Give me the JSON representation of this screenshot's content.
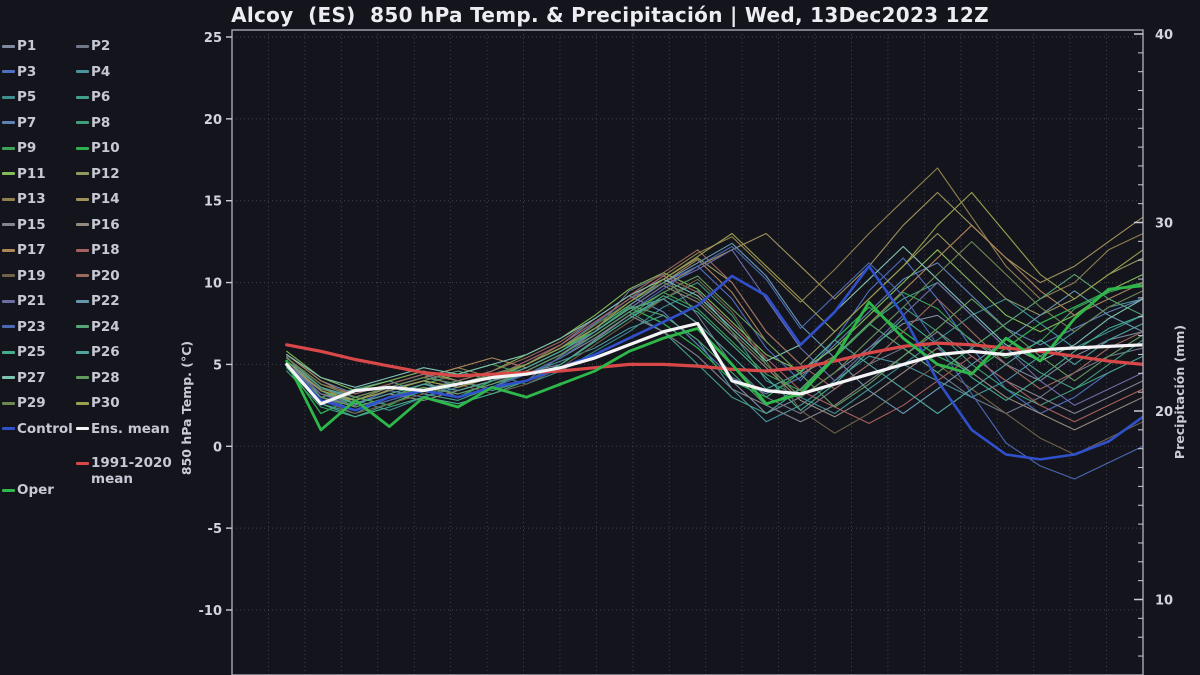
{
  "header": {
    "title": "Alcoy  (ES)  850 hPa Temp. & Precipitación | Wed, 13Dec2023 12Z"
  },
  "colors": {
    "background": "#14141d",
    "frame": "#a9a9b4",
    "grid": "#43434f",
    "tick": "#c9ccd6",
    "text": "#c6c9d3",
    "title": "#ececf2",
    "ens_mean": "#f4f4f6",
    "clim_mean": "#d84848",
    "oper": "#2eb84a",
    "control": "#3050cc"
  },
  "chart_data": {
    "type": "line",
    "title": "Alcoy  (ES)  850 hPa Temp. & Precipitación | Wed, 13Dec2023 12Z",
    "x": {
      "range": [
        0,
        25
      ],
      "data_start": 1.5,
      "gridline_step": 1,
      "tick_labels_visible": false
    },
    "y_left": {
      "label": "850 hPa Temp. (°C)",
      "ticks": [
        25,
        20,
        15,
        10,
        5,
        0,
        -5,
        -10
      ],
      "range": [
        -14,
        25.4
      ],
      "grid": true
    },
    "y_right": {
      "label": "Precipitación (mm)",
      "ticks": [
        10,
        20,
        30,
        40
      ],
      "minor_step": 1,
      "range": [
        6,
        40.3
      ],
      "grid": false
    },
    "legend_layout": {
      "member_rows": 15,
      "special_rows": [
        "Control",
        "Ens. mean",
        "1991-2020 mean",
        "Oper"
      ]
    },
    "series": [
      {
        "name": "P1",
        "color": "#7f8aa0",
        "width": 1.1,
        "values": [
          5.5,
          3.0,
          2.5,
          3.5,
          4.0,
          3.0,
          4.0,
          4.5,
          5.0,
          6.5,
          8.0,
          9.0,
          7.5,
          4.0,
          2.0,
          3.0,
          4.5,
          6.0,
          7.5,
          8.0,
          6.5,
          5.0,
          4.0,
          5.5,
          6.5,
          7.0
        ]
      },
      {
        "name": "P2",
        "color": "#6f7888",
        "width": 1.1,
        "values": [
          5.0,
          3.5,
          3.0,
          2.5,
          3.5,
          4.0,
          3.5,
          4.0,
          5.5,
          7.0,
          9.5,
          10.5,
          8.0,
          5.0,
          3.0,
          2.0,
          3.5,
          5.0,
          6.0,
          4.5,
          3.0,
          2.0,
          3.0,
          4.5,
          5.5,
          6.0
        ]
      },
      {
        "name": "P3",
        "color": "#4f6fc0",
        "width": 1.1,
        "values": [
          5.2,
          3.2,
          2.6,
          3.4,
          3.0,
          3.6,
          4.2,
          5.0,
          6.0,
          7.5,
          9.0,
          10.0,
          11.0,
          9.0,
          6.0,
          4.0,
          6.5,
          9.5,
          11.5,
          9.0,
          6.0,
          3.5,
          2.0,
          3.0,
          4.5,
          5.5
        ]
      },
      {
        "name": "P4",
        "color": "#49949c",
        "width": 1.1,
        "values": [
          4.8,
          2.6,
          2.0,
          3.0,
          3.8,
          3.2,
          3.8,
          4.4,
          5.2,
          6.0,
          7.2,
          8.0,
          6.5,
          3.5,
          1.5,
          2.5,
          4.0,
          5.5,
          5.0,
          4.0,
          3.0,
          4.0,
          5.5,
          7.0,
          8.5,
          9.0
        ]
      },
      {
        "name": "P5",
        "color": "#3d8f8f",
        "width": 1.1,
        "values": [
          5.4,
          3.6,
          2.8,
          2.2,
          3.0,
          3.8,
          4.4,
          3.8,
          4.6,
          5.8,
          7.0,
          8.5,
          9.5,
          7.0,
          4.0,
          3.0,
          2.0,
          3.5,
          5.0,
          6.5,
          8.0,
          9.0,
          7.5,
          6.0,
          7.0,
          8.0
        ]
      },
      {
        "name": "P6",
        "color": "#42a089",
        "width": 1.1,
        "values": [
          5.0,
          3.0,
          3.5,
          4.0,
          3.2,
          2.8,
          3.6,
          4.6,
          5.6,
          6.8,
          8.2,
          7.0,
          5.0,
          3.0,
          2.0,
          3.5,
          5.5,
          7.5,
          9.0,
          10.0,
          8.0,
          6.0,
          4.5,
          3.5,
          4.5,
          5.5
        ]
      },
      {
        "name": "P7",
        "color": "#5f82b5",
        "width": 1.1,
        "values": [
          5.6,
          4.0,
          3.2,
          3.8,
          4.4,
          3.6,
          4.2,
          5.2,
          6.2,
          7.8,
          9.2,
          8.2,
          6.2,
          4.2,
          3.2,
          4.2,
          6.2,
          8.2,
          10.2,
          11.2,
          9.2,
          7.2,
          6.2,
          7.2,
          8.2,
          9.0
        ]
      },
      {
        "name": "P8",
        "color": "#3f9d78",
        "width": 1.1,
        "values": [
          4.6,
          2.4,
          1.8,
          2.6,
          3.4,
          4.0,
          3.4,
          4.0,
          5.0,
          6.4,
          7.8,
          9.0,
          10.0,
          8.0,
          5.0,
          3.0,
          4.5,
          6.5,
          8.5,
          7.0,
          5.0,
          3.5,
          2.5,
          3.5,
          5.0,
          6.5
        ]
      },
      {
        "name": "P9",
        "color": "#3da257",
        "width": 1.1,
        "values": [
          5.2,
          3.4,
          2.4,
          3.0,
          3.8,
          4.4,
          5.0,
          4.4,
          5.4,
          6.6,
          8.0,
          9.4,
          8.4,
          6.4,
          4.4,
          3.4,
          5.4,
          7.4,
          9.4,
          8.4,
          6.4,
          5.4,
          6.4,
          8.4,
          9.4,
          10.0
        ]
      },
      {
        "name": "P10",
        "color": "#2fae52",
        "width": 1.3,
        "values": [
          5.0,
          2.0,
          3.0,
          2.5,
          3.5,
          3.0,
          4.0,
          5.0,
          6.0,
          7.0,
          8.5,
          7.5,
          6.0,
          4.0,
          3.0,
          4.5,
          6.5,
          8.5,
          7.0,
          5.5,
          4.5,
          6.0,
          7.5,
          8.5,
          9.5,
          10.0
        ]
      },
      {
        "name": "P11",
        "color": "#84bb58",
        "width": 1.1,
        "values": [
          5.8,
          4.2,
          3.4,
          4.0,
          4.6,
          4.0,
          4.6,
          5.6,
          6.6,
          8.0,
          9.6,
          10.6,
          9.6,
          7.6,
          5.6,
          4.6,
          6.0,
          8.0,
          10.0,
          12.0,
          10.0,
          8.0,
          7.0,
          8.0,
          9.5,
          10.5
        ]
      },
      {
        "name": "P12",
        "color": "#93985f",
        "width": 1.1,
        "values": [
          5.0,
          3.2,
          2.8,
          3.6,
          4.2,
          3.8,
          4.4,
          5.0,
          6.0,
          7.4,
          8.8,
          10.2,
          11.5,
          10.0,
          7.0,
          5.0,
          7.0,
          9.0,
          11.0,
          13.0,
          11.0,
          9.0,
          8.0,
          9.0,
          10.5,
          11.5
        ]
      },
      {
        "name": "P13",
        "color": "#8f7f4f",
        "width": 1.1,
        "values": [
          5.4,
          3.8,
          3.0,
          3.6,
          4.2,
          4.8,
          4.2,
          5.0,
          6.2,
          7.6,
          9.0,
          10.4,
          11.8,
          12.8,
          10.8,
          8.8,
          10.8,
          13.0,
          15.0,
          17.0,
          14.0,
          11.0,
          9.0,
          10.0,
          12.0,
          13.0
        ]
      },
      {
        "name": "P14",
        "color": "#a0915a",
        "width": 1.1,
        "values": [
          5.2,
          3.6,
          2.6,
          3.2,
          3.8,
          3.4,
          4.0,
          4.8,
          5.8,
          7.0,
          8.4,
          9.8,
          11.0,
          12.0,
          13.0,
          11.0,
          9.0,
          11.0,
          13.5,
          15.5,
          13.5,
          11.5,
          10.0,
          11.0,
          12.5,
          14.0
        ]
      },
      {
        "name": "P15",
        "color": "#84848e",
        "width": 1.1,
        "values": [
          4.8,
          3.0,
          2.2,
          2.8,
          3.4,
          3.0,
          3.6,
          4.4,
          5.4,
          6.6,
          8.0,
          7.0,
          5.5,
          3.5,
          2.5,
          1.5,
          2.5,
          4.0,
          5.5,
          7.0,
          5.5,
          4.0,
          3.0,
          2.0,
          3.0,
          4.0
        ]
      },
      {
        "name": "P16",
        "color": "#948b7e",
        "width": 1.1,
        "values": [
          5.0,
          3.4,
          2.6,
          3.2,
          2.8,
          3.4,
          4.0,
          4.6,
          5.6,
          7.0,
          8.4,
          9.8,
          8.8,
          6.8,
          4.8,
          2.8,
          1.8,
          3.0,
          4.5,
          6.0,
          4.5,
          3.0,
          2.0,
          1.0,
          2.0,
          3.0
        ]
      },
      {
        "name": "P17",
        "color": "#ad8557",
        "width": 1.1,
        "values": [
          5.6,
          4.0,
          3.0,
          3.6,
          4.2,
          4.8,
          5.4,
          4.8,
          5.8,
          7.2,
          8.6,
          10.0,
          11.4,
          9.4,
          6.4,
          4.4,
          5.5,
          7.5,
          9.5,
          11.5,
          13.5,
          11.5,
          9.5,
          8.0,
          9.0,
          10.0
        ]
      },
      {
        "name": "P18",
        "color": "#a85f5f",
        "width": 1.1,
        "values": [
          5.2,
          3.4,
          2.8,
          3.4,
          4.0,
          3.6,
          4.2,
          5.2,
          6.2,
          7.6,
          9.0,
          10.4,
          9.4,
          7.4,
          5.4,
          3.4,
          2.4,
          1.4,
          2.5,
          4.0,
          5.5,
          4.0,
          2.5,
          1.5,
          2.5,
          3.5
        ]
      },
      {
        "name": "P19",
        "color": "#6f6248",
        "width": 1.1,
        "values": [
          4.8,
          2.8,
          2.0,
          2.6,
          3.2,
          3.8,
          3.2,
          3.8,
          4.8,
          6.2,
          7.6,
          9.0,
          10.2,
          8.2,
          5.2,
          2.2,
          0.8,
          2.0,
          3.5,
          5.0,
          3.5,
          2.0,
          0.5,
          -0.5,
          0.5,
          1.5
        ]
      },
      {
        "name": "P20",
        "color": "#9a6a5c",
        "width": 1.1,
        "values": [
          5.4,
          3.8,
          3.2,
          3.8,
          4.4,
          4.0,
          4.6,
          5.4,
          6.4,
          7.8,
          9.2,
          10.6,
          12.0,
          10.0,
          7.0,
          5.0,
          3.5,
          5.0,
          7.0,
          9.0,
          7.0,
          5.0,
          3.5,
          4.5,
          6.0,
          7.0
        ]
      },
      {
        "name": "P21",
        "color": "#6d6da6",
        "width": 1.1,
        "values": [
          5.0,
          3.2,
          2.4,
          3.0,
          3.6,
          3.2,
          3.8,
          4.6,
          5.6,
          7.0,
          8.4,
          9.8,
          10.8,
          12.0,
          9.0,
          6.0,
          4.0,
          6.0,
          8.0,
          10.0,
          8.0,
          6.0,
          4.0,
          2.5,
          3.5,
          4.5
        ]
      },
      {
        "name": "P22",
        "color": "#6697ad",
        "width": 1.1,
        "values": [
          5.2,
          3.6,
          3.0,
          3.6,
          4.2,
          3.8,
          4.4,
          5.0,
          6.0,
          7.2,
          8.6,
          10.0,
          11.2,
          12.4,
          10.4,
          7.4,
          5.4,
          3.4,
          2.0,
          3.5,
          5.0,
          6.5,
          8.0,
          9.5,
          8.0,
          7.0
        ]
      },
      {
        "name": "P23",
        "color": "#4a69b2",
        "width": 1.1,
        "values": [
          5.0,
          3.0,
          2.2,
          2.8,
          3.4,
          3.0,
          3.6,
          4.4,
          5.4,
          6.8,
          8.2,
          9.6,
          11.0,
          12.2,
          10.2,
          7.2,
          9.2,
          11.2,
          9.2,
          6.2,
          3.2,
          0.2,
          -1.2,
          -2.0,
          -1.0,
          0.0
        ]
      },
      {
        "name": "P24",
        "color": "#55a574",
        "width": 1.1,
        "values": [
          5.4,
          3.6,
          2.8,
          3.4,
          4.0,
          4.6,
          4.0,
          4.8,
          5.8,
          7.2,
          8.6,
          8.0,
          6.5,
          4.5,
          2.5,
          3.5,
          5.5,
          7.5,
          6.0,
          4.5,
          6.0,
          7.5,
          9.0,
          10.5,
          9.0,
          8.0
        ]
      },
      {
        "name": "P25",
        "color": "#45ad8c",
        "width": 1.1,
        "values": [
          4.8,
          2.6,
          1.8,
          2.4,
          3.0,
          2.6,
          3.2,
          4.0,
          5.0,
          6.4,
          7.8,
          9.2,
          8.2,
          6.2,
          4.2,
          2.2,
          3.8,
          5.8,
          7.8,
          6.2,
          4.2,
          2.8,
          4.2,
          5.8,
          7.2,
          8.0
        ]
      },
      {
        "name": "P26",
        "color": "#4fa59d",
        "width": 1.1,
        "values": [
          5.2,
          3.4,
          2.6,
          3.2,
          3.8,
          3.4,
          4.0,
          4.8,
          5.8,
          7.0,
          8.4,
          9.0,
          7.5,
          5.5,
          3.5,
          4.5,
          6.5,
          5.0,
          3.5,
          2.0,
          3.5,
          5.0,
          6.5,
          5.0,
          6.5,
          7.5
        ]
      },
      {
        "name": "P27",
        "color": "#7fc2b1",
        "width": 1.1,
        "values": [
          5.6,
          4.2,
          3.6,
          4.2,
          4.8,
          4.4,
          5.0,
          5.6,
          6.6,
          7.8,
          9.2,
          10.2,
          9.2,
          7.2,
          5.2,
          6.2,
          8.2,
          10.2,
          12.2,
          10.2,
          8.2,
          6.2,
          5.2,
          6.2,
          7.8,
          9.0
        ]
      },
      {
        "name": "P28",
        "color": "#629c5c",
        "width": 1.1,
        "values": [
          5.0,
          3.0,
          2.4,
          3.0,
          3.6,
          3.2,
          3.8,
          4.6,
          5.6,
          6.8,
          8.2,
          9.4,
          10.4,
          8.4,
          6.4,
          4.4,
          2.4,
          3.8,
          5.5,
          7.2,
          9.0,
          7.2,
          5.5,
          4.0,
          5.5,
          6.8
        ]
      },
      {
        "name": "P29",
        "color": "#6d8753",
        "width": 1.1,
        "values": [
          5.4,
          3.8,
          3.0,
          3.6,
          4.2,
          3.8,
          4.4,
          5.0,
          6.0,
          7.4,
          8.8,
          10.0,
          9.0,
          7.0,
          5.0,
          3.0,
          4.5,
          6.5,
          8.5,
          10.5,
          12.5,
          10.5,
          8.5,
          7.0,
          8.5,
          9.5
        ]
      },
      {
        "name": "P30",
        "color": "#99a04e",
        "width": 1.1,
        "values": [
          5.2,
          3.4,
          2.8,
          3.4,
          4.0,
          3.6,
          4.2,
          5.0,
          6.0,
          7.2,
          8.8,
          10.2,
          11.6,
          13.0,
          11.0,
          9.0,
          7.0,
          9.0,
          11.0,
          13.5,
          15.5,
          13.0,
          10.5,
          9.0,
          10.5,
          12.0
        ]
      },
      {
        "name": "Control",
        "color": "#3050cc",
        "width": 2.6,
        "values": [
          5.0,
          2.8,
          2.2,
          3.0,
          3.4,
          3.0,
          3.6,
          4.0,
          4.8,
          5.6,
          6.6,
          7.6,
          8.6,
          10.4,
          9.2,
          6.2,
          8.2,
          11.0,
          8.0,
          4.0,
          1.0,
          -0.5,
          -0.8,
          -0.5,
          0.3,
          1.8
        ]
      },
      {
        "name": "1991-2020 mean",
        "color": "#d84848",
        "width": 3.2,
        "values": [
          6.2,
          5.8,
          5.3,
          4.9,
          4.5,
          4.3,
          4.4,
          4.5,
          4.6,
          4.8,
          5.0,
          5.0,
          4.9,
          4.7,
          4.6,
          4.8,
          5.2,
          5.7,
          6.1,
          6.3,
          6.2,
          6.0,
          5.8,
          5.5,
          5.2,
          5.0
        ]
      },
      {
        "name": "Oper",
        "color": "#2eb84a",
        "width": 2.8,
        "values": [
          5.2,
          1.0,
          2.8,
          1.2,
          3.0,
          2.4,
          3.6,
          3.0,
          3.8,
          4.6,
          5.8,
          6.6,
          7.2,
          5.0,
          2.6,
          3.2,
          5.4,
          8.8,
          6.6,
          5.0,
          4.4,
          6.6,
          5.2,
          7.8,
          9.6,
          9.8
        ]
      },
      {
        "name": "Ens. mean",
        "color": "#f4f4f6",
        "width": 3.2,
        "values": [
          5.0,
          2.6,
          3.4,
          3.6,
          3.4,
          3.8,
          4.2,
          4.4,
          4.8,
          5.4,
          6.2,
          7.0,
          7.5,
          4.0,
          3.4,
          3.2,
          3.8,
          4.4,
          5.0,
          5.6,
          5.8,
          5.6,
          5.9,
          6.0,
          6.1,
          6.2
        ]
      }
    ]
  }
}
